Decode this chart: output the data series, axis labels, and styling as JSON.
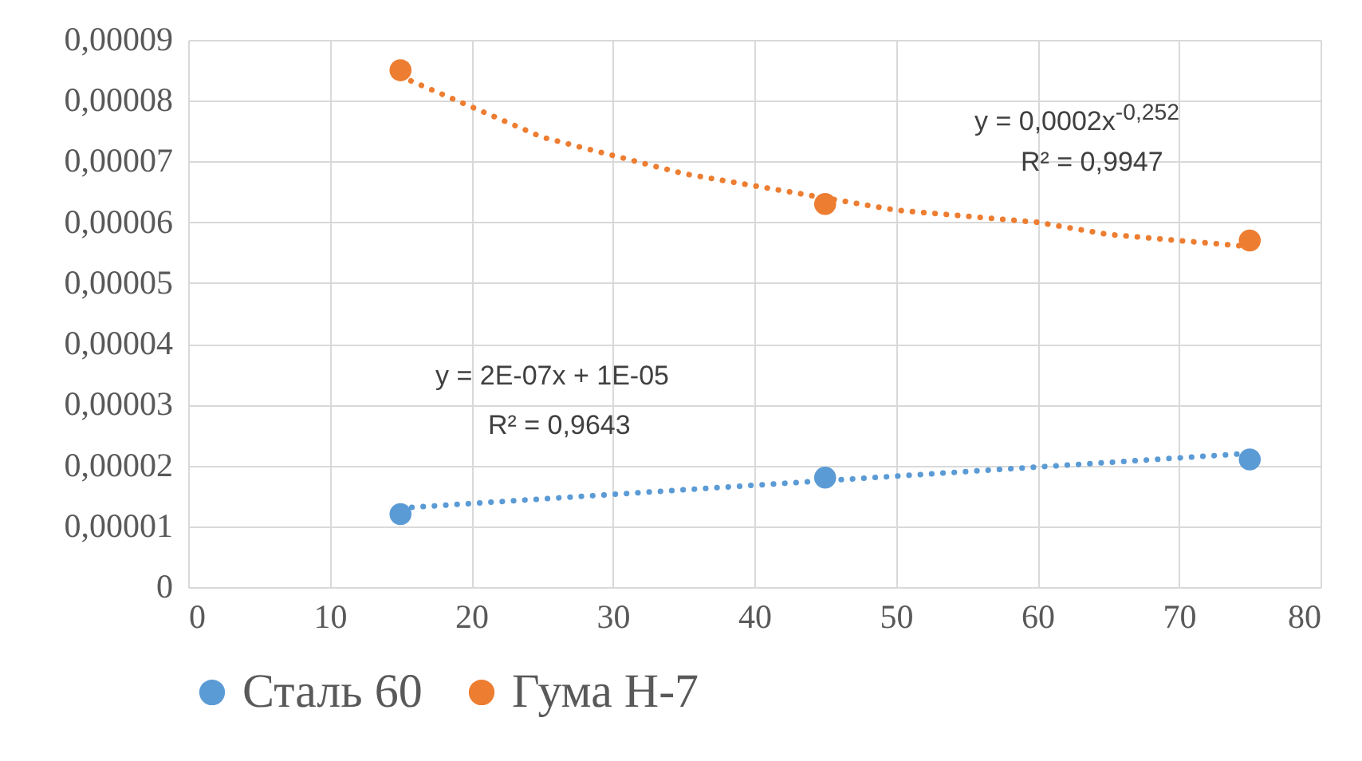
{
  "chart_data": {
    "type": "scatter",
    "xlim": [
      0,
      80
    ],
    "xticks": [
      0,
      10,
      20,
      30,
      40,
      50,
      60,
      70,
      80
    ],
    "ylim": [
      0,
      9e-05
    ],
    "yticks": [
      {
        "value": 0,
        "label": "0"
      },
      {
        "value": 1e-05,
        "label": "0,00001"
      },
      {
        "value": 2e-05,
        "label": "0,00002"
      },
      {
        "value": 3e-05,
        "label": "0,00003"
      },
      {
        "value": 4e-05,
        "label": "0,00004"
      },
      {
        "value": 5e-05,
        "label": "0,00005"
      },
      {
        "value": 6e-05,
        "label": "0,00006"
      },
      {
        "value": 7e-05,
        "label": "0,00007"
      },
      {
        "value": 8e-05,
        "label": "0,00008"
      },
      {
        "value": 9e-05,
        "label": "0,00009"
      }
    ],
    "grid": true,
    "legend": "bottom",
    "marker": "circle",
    "series": [
      {
        "type": "line",
        "line_style": "dotted",
        "marker": "none",
        "color": "#5b9bd5",
        "x": [
          15,
          75
        ],
        "values": [
          1.3e-05,
          2.2e-05
        ]
      },
      {
        "type": "line",
        "line_style": "dotted",
        "marker": "none",
        "color": "#ed7d31",
        "x": [
          15,
          20,
          25,
          30,
          35,
          40,
          45,
          50,
          55,
          60,
          65,
          70,
          75
        ],
        "values": [
          8.4e-05,
          7.9e-05,
          7.4e-05,
          7.1e-05,
          6.8e-05,
          6.6e-05,
          6.4e-05,
          6.2e-05,
          6.1e-05,
          6e-05,
          5.8e-05,
          5.7e-05,
          5.6e-05
        ]
      },
      {
        "name": "Сталь 60",
        "color": "#5b9bd5",
        "x": [
          15,
          45,
          75
        ],
        "values": [
          1.2e-05,
          1.8e-05,
          2.1e-05
        ]
      },
      {
        "name": "Гума Н-7",
        "color": "#ed7d31",
        "x": [
          15,
          45,
          75
        ],
        "values": [
          8.5e-05,
          6.3e-05,
          5.7e-05
        ]
      }
    ],
    "annotations": [
      "y = 0,0002x$^{-0,252}$",
      "R² = 0,9947",
      "y = 2E-07x + 1E-05",
      "R² = 0,9643"
    ]
  }
}
